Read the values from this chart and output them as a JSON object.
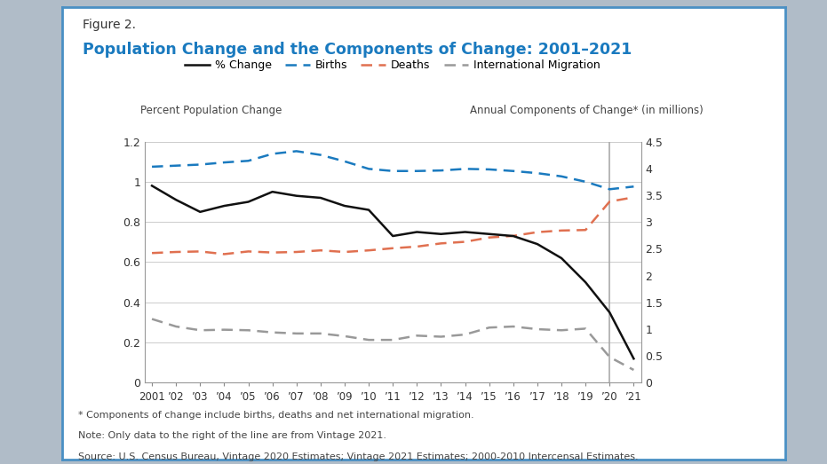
{
  "title_fig": "Figure 2.",
  "title_main": "Population Change and the Components of Change: 2001–2021",
  "title_color": "#1a7abf",
  "ylabel_left": "Percent Population Change",
  "ylabel_right": "Annual Components of Change* (in millions)",
  "years": [
    2001,
    2002,
    2003,
    2004,
    2005,
    2006,
    2007,
    2008,
    2009,
    2010,
    2011,
    2012,
    2013,
    2014,
    2015,
    2016,
    2017,
    2018,
    2019,
    2020,
    2021
  ],
  "pct_change": [
    0.98,
    0.91,
    0.85,
    0.88,
    0.9,
    0.95,
    0.93,
    0.92,
    0.88,
    0.86,
    0.73,
    0.75,
    0.74,
    0.75,
    0.74,
    0.73,
    0.69,
    0.62,
    0.5,
    0.35,
    0.12
  ],
  "births": [
    4.03,
    4.05,
    4.07,
    4.11,
    4.14,
    4.27,
    4.32,
    4.25,
    4.13,
    3.99,
    3.95,
    3.95,
    3.96,
    3.99,
    3.98,
    3.95,
    3.91,
    3.85,
    3.75,
    3.61,
    3.66
  ],
  "deaths": [
    2.42,
    2.44,
    2.45,
    2.4,
    2.45,
    2.43,
    2.44,
    2.47,
    2.44,
    2.47,
    2.51,
    2.54,
    2.6,
    2.63,
    2.71,
    2.74,
    2.81,
    2.84,
    2.85,
    3.38,
    3.46
  ],
  "intl_migration": [
    1.19,
    1.05,
    0.98,
    0.99,
    0.98,
    0.94,
    0.92,
    0.92,
    0.87,
    0.8,
    0.8,
    0.88,
    0.86,
    0.9,
    1.03,
    1.05,
    1.0,
    0.98,
    1.01,
    0.48,
    0.24
  ],
  "vintage_split_year": 2020,
  "births_color": "#1a7abf",
  "deaths_color": "#e07050",
  "migration_color": "#999999",
  "pct_change_color": "#111111",
  "background_color": "#ffffff",
  "outer_bg": "#b0bcc8",
  "border_color": "#4a90c4",
  "note1": "* Components of change include births, deaths and net international migration.",
  "note2": "Note: Only data to the right of the line are from Vintage 2021.",
  "note3": "Source: U.S. Census Bureau, Vintage 2020 Estimates; Vintage 2021 Estimates; 2000-2010 Intercensal Estimates.",
  "ylim_left": [
    0,
    1.2
  ],
  "ylim_right": [
    0,
    4.5
  ],
  "yticks_left": [
    0,
    0.2,
    0.4,
    0.6,
    0.8,
    1.0,
    1.2
  ],
  "yticks_right": [
    0,
    0.5,
    1.0,
    1.5,
    2.0,
    2.5,
    3.0,
    3.5,
    4.0,
    4.5
  ]
}
